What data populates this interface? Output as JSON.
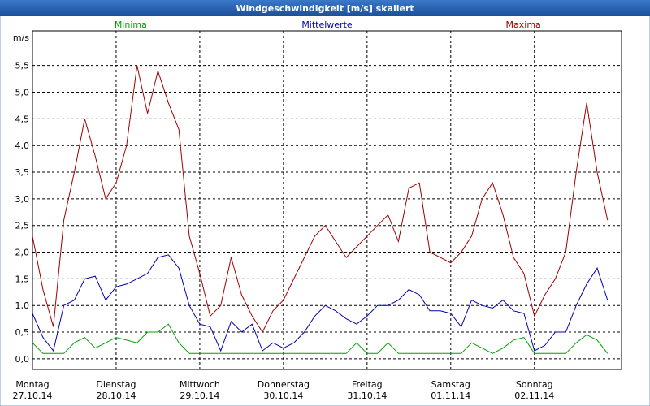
{
  "chart_data": {
    "type": "line",
    "title": "Windgeschwindigkeit [m/s] skaliert",
    "y_unit_label": "m/s",
    "x": [
      0,
      3,
      6,
      9,
      12,
      15,
      18,
      21,
      24,
      27,
      30,
      33,
      36,
      39,
      42,
      45,
      48,
      51,
      54,
      57,
      60,
      63,
      66,
      69,
      72,
      75,
      78,
      81,
      84,
      87,
      90,
      93,
      96,
      99,
      102,
      105,
      108,
      111,
      114,
      117,
      120,
      123,
      126,
      129,
      132,
      135,
      138,
      141,
      144,
      147,
      150,
      153,
      156,
      159,
      162,
      165
    ],
    "xlim": [
      0,
      169
    ],
    "xticks": [
      {
        "value": 0,
        "label": "Montag",
        "date": "27.10.14"
      },
      {
        "value": 24,
        "label": "Dienstag",
        "date": "28.10.14"
      },
      {
        "value": 48,
        "label": "Mittwoch",
        "date": "29.10.14"
      },
      {
        "value": 72,
        "label": "Donnerstag",
        "date": "30.10.14"
      },
      {
        "value": 96,
        "label": "Freitag",
        "date": "31.10.14"
      },
      {
        "value": 120,
        "label": "Samstag",
        "date": "01.11.14"
      },
      {
        "value": 144,
        "label": "Sonntag",
        "date": "02.11.14"
      }
    ],
    "ylim": [
      -0.2,
      6.15
    ],
    "yticks": [
      {
        "value": 0,
        "label": "0,0"
      },
      {
        "value": 0.5,
        "label": "0,5"
      },
      {
        "value": 1,
        "label": "1,0"
      },
      {
        "value": 1.5,
        "label": "1,5"
      },
      {
        "value": 2,
        "label": "2,0"
      },
      {
        "value": 2.5,
        "label": "2,5"
      },
      {
        "value": 3,
        "label": "3,0"
      },
      {
        "value": 3.5,
        "label": "3,5"
      },
      {
        "value": 4,
        "label": "4,0"
      },
      {
        "value": 4.5,
        "label": "4,5"
      },
      {
        "value": 5,
        "label": "5,0"
      },
      {
        "value": 5.5,
        "label": "5,5"
      }
    ],
    "grid": true,
    "legend": "top",
    "series": [
      {
        "name": "Minima",
        "color": "#00a000",
        "values": [
          0.3,
          0.1,
          0.1,
          0.1,
          0.3,
          0.4,
          0.2,
          0.3,
          0.4,
          0.35,
          0.3,
          0.5,
          0.5,
          0.65,
          0.3,
          0.1,
          0.1,
          0.1,
          0.1,
          0.1,
          0.1,
          0.1,
          0.1,
          0.1,
          0.1,
          0.1,
          0.1,
          0.1,
          0.1,
          0.1,
          0.1,
          0.3,
          0.1,
          0.1,
          0.3,
          0.1,
          0.1,
          0.1,
          0.1,
          0.1,
          0.1,
          0.1,
          0.3,
          0.2,
          0.1,
          0.2,
          0.35,
          0.4,
          0.1,
          0.1,
          0.1,
          0.1,
          0.3,
          0.45,
          0.35,
          0.1
        ]
      },
      {
        "name": "Mittelwerte",
        "color": "#0000b0",
        "values": [
          0.85,
          0.4,
          0.15,
          1.0,
          1.1,
          1.5,
          1.55,
          1.1,
          1.35,
          1.4,
          1.5,
          1.6,
          1.9,
          1.95,
          1.7,
          1.0,
          0.65,
          0.6,
          0.15,
          0.7,
          0.5,
          0.65,
          0.15,
          0.3,
          0.2,
          0.3,
          0.5,
          0.8,
          1.0,
          0.9,
          0.75,
          0.65,
          0.8,
          1.0,
          1.0,
          1.1,
          1.3,
          1.2,
          0.9,
          0.9,
          0.85,
          0.6,
          1.1,
          1.0,
          0.95,
          1.1,
          0.9,
          0.85,
          0.15,
          0.25,
          0.5,
          0.5,
          1.0,
          1.4,
          1.7,
          1.1
        ]
      },
      {
        "name": "Maxima",
        "color": "#a00000",
        "values": [
          2.3,
          1.3,
          0.6,
          2.6,
          3.5,
          4.5,
          3.8,
          3.0,
          3.3,
          4.0,
          5.5,
          4.6,
          5.4,
          4.8,
          4.3,
          2.3,
          1.6,
          0.8,
          1.0,
          1.9,
          1.2,
          0.8,
          0.5,
          0.9,
          1.1,
          1.5,
          1.9,
          2.3,
          2.5,
          2.2,
          1.9,
          2.1,
          2.3,
          2.5,
          2.7,
          2.2,
          3.2,
          3.3,
          2.0,
          1.9,
          1.8,
          2.0,
          2.3,
          3.0,
          3.3,
          2.7,
          1.9,
          1.6,
          0.8,
          1.2,
          1.5,
          2.0,
          3.5,
          4.8,
          3.5,
          2.6
        ]
      }
    ]
  }
}
